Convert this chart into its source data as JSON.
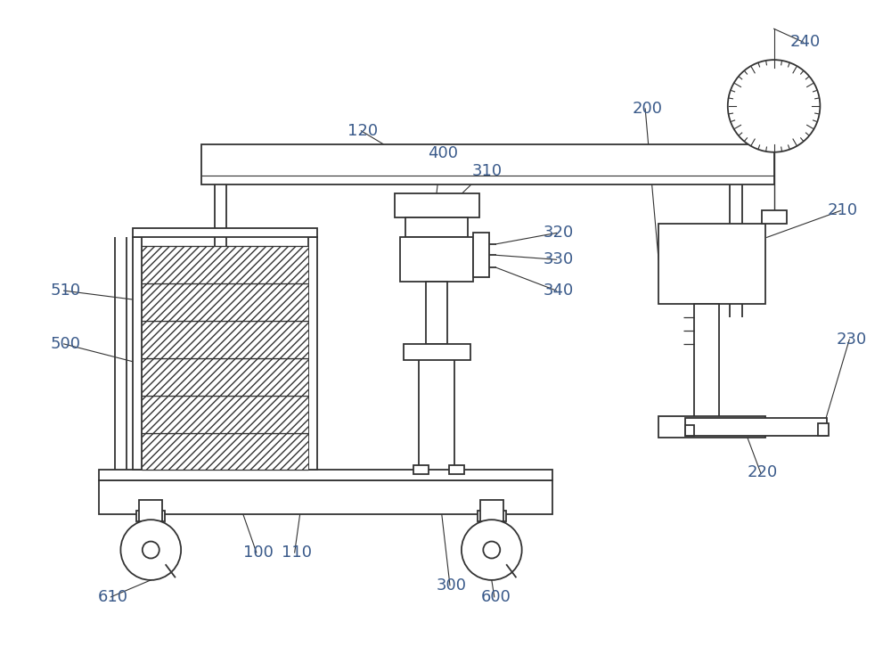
{
  "bg_color": "#ffffff",
  "line_color": "#333333",
  "label_color": "#3a5a8a",
  "figsize": [
    10.0,
    7.26
  ],
  "dpi": 100
}
